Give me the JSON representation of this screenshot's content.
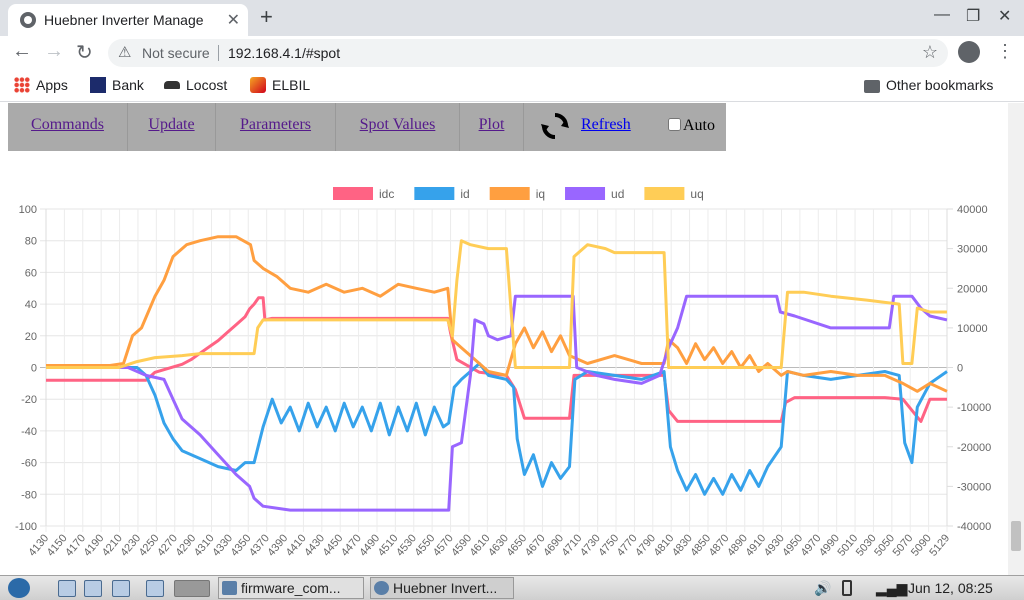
{
  "browser": {
    "tab_title": "Huebner Inverter Manage",
    "url_warning": "Not secure",
    "url": "192.168.4.1/#spot",
    "bookmarks": [
      "Apps",
      "Bank",
      "Locost",
      "ELBIL"
    ],
    "other_bookmarks": "Other bookmarks"
  },
  "menu": {
    "items": [
      "Commands",
      "Update",
      "Parameters",
      "Spot Values",
      "Plot"
    ],
    "refresh_label": "Refresh",
    "auto_label": "Auto"
  },
  "chart_data": {
    "type": "line",
    "title": "",
    "legend_position": "top",
    "grid": true,
    "x": {
      "tick_labels": [
        4130,
        4150,
        4170,
        4190,
        4210,
        4230,
        4250,
        4270,
        4290,
        4310,
        4330,
        4350,
        4370,
        4390,
        4410,
        4430,
        4450,
        4470,
        4490,
        4510,
        4530,
        4550,
        4570,
        4590,
        4610,
        4630,
        4650,
        4670,
        4690,
        4710,
        4730,
        4750,
        4770,
        4790,
        4810,
        4830,
        4850,
        4870,
        4890,
        4910,
        4930,
        4950,
        4970,
        4990,
        5010,
        5030,
        5050,
        5070,
        5090,
        5129
      ],
      "range": [
        4129,
        5129
      ]
    },
    "y_left": {
      "range": [
        -100,
        100
      ],
      "ticks": [
        100,
        80,
        60,
        40,
        20,
        0,
        -20,
        -40,
        -60,
        -80,
        -100
      ]
    },
    "y_right": {
      "range": [
        -40000,
        40000
      ],
      "ticks": [
        40000,
        30000,
        20000,
        10000,
        0,
        -10000,
        -20000,
        -30000,
        -40000
      ]
    },
    "series": [
      {
        "name": "idc",
        "color": "#ff6384",
        "axis": "left",
        "points": [
          [
            4129,
            -8
          ],
          [
            4240,
            -8
          ],
          [
            4250,
            -3
          ],
          [
            4280,
            2
          ],
          [
            4290,
            5
          ],
          [
            4300,
            9
          ],
          [
            4310,
            13
          ],
          [
            4320,
            17
          ],
          [
            4330,
            22
          ],
          [
            4340,
            27
          ],
          [
            4350,
            32
          ],
          [
            4355,
            37
          ],
          [
            4360,
            40
          ],
          [
            4365,
            44
          ],
          [
            4370,
            44
          ],
          [
            4372,
            30
          ],
          [
            4380,
            31
          ],
          [
            4440,
            31
          ],
          [
            4500,
            31
          ],
          [
            4575,
            31
          ],
          [
            4578,
            22
          ],
          [
            4585,
            5
          ],
          [
            4610,
            -3
          ],
          [
            4640,
            -5
          ],
          [
            4650,
            -14
          ],
          [
            4660,
            -32
          ],
          [
            4710,
            -32
          ],
          [
            4715,
            -5
          ],
          [
            4730,
            -5
          ],
          [
            4815,
            -5
          ],
          [
            4820,
            -27
          ],
          [
            4830,
            -34
          ],
          [
            4870,
            -34
          ],
          [
            4930,
            -34
          ],
          [
            4945,
            -34
          ],
          [
            4950,
            -22
          ],
          [
            4960,
            -19
          ],
          [
            4990,
            -19
          ],
          [
            5060,
            -19
          ],
          [
            5080,
            -20
          ],
          [
            5090,
            -27
          ],
          [
            5100,
            -34
          ],
          [
            5110,
            -20
          ],
          [
            5129,
            -20
          ]
        ]
      },
      {
        "name": "id",
        "color": "#36a2eb",
        "axis": "right",
        "points": [
          [
            4129,
            0
          ],
          [
            4230,
            0
          ],
          [
            4240,
            -2000
          ],
          [
            4250,
            -7000
          ],
          [
            4260,
            -14000
          ],
          [
            4270,
            -18000
          ],
          [
            4280,
            -21000
          ],
          [
            4300,
            -23000
          ],
          [
            4320,
            -25000
          ],
          [
            4340,
            -26000
          ],
          [
            4350,
            -24000
          ],
          [
            4360,
            -24000
          ],
          [
            4370,
            -15000
          ],
          [
            4380,
            -8000
          ],
          [
            4390,
            -14000
          ],
          [
            4400,
            -10000
          ],
          [
            4410,
            -16000
          ],
          [
            4420,
            -9000
          ],
          [
            4430,
            -15000
          ],
          [
            4440,
            -10000
          ],
          [
            4450,
            -16000
          ],
          [
            4460,
            -9000
          ],
          [
            4470,
            -15000
          ],
          [
            4480,
            -10000
          ],
          [
            4490,
            -16000
          ],
          [
            4500,
            -9000
          ],
          [
            4510,
            -17000
          ],
          [
            4520,
            -10000
          ],
          [
            4530,
            -16000
          ],
          [
            4540,
            -9000
          ],
          [
            4550,
            -17000
          ],
          [
            4560,
            -10000
          ],
          [
            4570,
            -15000
          ],
          [
            4576,
            -14000
          ],
          [
            4582,
            -5000
          ],
          [
            4590,
            -3000
          ],
          [
            4600,
            -1000
          ],
          [
            4610,
            1000
          ],
          [
            4620,
            -2000
          ],
          [
            4640,
            -3000
          ],
          [
            4648,
            -5000
          ],
          [
            4652,
            -18000
          ],
          [
            4660,
            -27000
          ],
          [
            4670,
            -22000
          ],
          [
            4680,
            -30000
          ],
          [
            4690,
            -24000
          ],
          [
            4700,
            -28000
          ],
          [
            4710,
            -25000
          ],
          [
            4716,
            -3000
          ],
          [
            4730,
            -1000
          ],
          [
            4760,
            -2000
          ],
          [
            4790,
            -3000
          ],
          [
            4815,
            -1000
          ],
          [
            4822,
            -20000
          ],
          [
            4830,
            -26000
          ],
          [
            4840,
            -31000
          ],
          [
            4850,
            -27000
          ],
          [
            4860,
            -32000
          ],
          [
            4870,
            -28000
          ],
          [
            4880,
            -32000
          ],
          [
            4890,
            -27000
          ],
          [
            4900,
            -31000
          ],
          [
            4910,
            -26000
          ],
          [
            4920,
            -30000
          ],
          [
            4930,
            -25000
          ],
          [
            4945,
            -20000
          ],
          [
            4952,
            -1000
          ],
          [
            4970,
            -2000
          ],
          [
            5000,
            -3000
          ],
          [
            5030,
            -2000
          ],
          [
            5060,
            -1000
          ],
          [
            5076,
            -2000
          ],
          [
            5082,
            -19000
          ],
          [
            5090,
            -24000
          ],
          [
            5096,
            -10000
          ],
          [
            5110,
            -4000
          ],
          [
            5129,
            -1000
          ]
        ]
      },
      {
        "name": "iq",
        "color": "#ff9f40",
        "axis": "right",
        "points": [
          [
            4129,
            500
          ],
          [
            4200,
            500
          ],
          [
            4215,
            1000
          ],
          [
            4225,
            8000
          ],
          [
            4235,
            10000
          ],
          [
            4250,
            18000
          ],
          [
            4260,
            22000
          ],
          [
            4270,
            28000
          ],
          [
            4285,
            31000
          ],
          [
            4300,
            32000
          ],
          [
            4320,
            33000
          ],
          [
            4340,
            33000
          ],
          [
            4356,
            31000
          ],
          [
            4360,
            27000
          ],
          [
            4370,
            25000
          ],
          [
            4385,
            23000
          ],
          [
            4400,
            20000
          ],
          [
            4420,
            19000
          ],
          [
            4440,
            21000
          ],
          [
            4460,
            19000
          ],
          [
            4480,
            20000
          ],
          [
            4500,
            18000
          ],
          [
            4520,
            21000
          ],
          [
            4540,
            20000
          ],
          [
            4560,
            19000
          ],
          [
            4575,
            20000
          ],
          [
            4580,
            7000
          ],
          [
            4590,
            5000
          ],
          [
            4600,
            3000
          ],
          [
            4620,
            -1000
          ],
          [
            4640,
            -2000
          ],
          [
            4650,
            6000
          ],
          [
            4660,
            10000
          ],
          [
            4670,
            5000
          ],
          [
            4680,
            9000
          ],
          [
            4690,
            4000
          ],
          [
            4700,
            8000
          ],
          [
            4710,
            3000
          ],
          [
            4730,
            1000
          ],
          [
            4760,
            3000
          ],
          [
            4790,
            1000
          ],
          [
            4815,
            1000
          ],
          [
            4820,
            7000
          ],
          [
            4830,
            5000
          ],
          [
            4840,
            1000
          ],
          [
            4850,
            6000
          ],
          [
            4860,
            2000
          ],
          [
            4870,
            5000
          ],
          [
            4880,
            1000
          ],
          [
            4890,
            4000
          ],
          [
            4900,
            0
          ],
          [
            4910,
            3000
          ],
          [
            4920,
            -1000
          ],
          [
            4930,
            1000
          ],
          [
            4945,
            -2000
          ],
          [
            4952,
            -1000
          ],
          [
            4970,
            -2000
          ],
          [
            5000,
            -1000
          ],
          [
            5030,
            -2000
          ],
          [
            5060,
            -2000
          ],
          [
            5080,
            -4000
          ],
          [
            5096,
            -6000
          ],
          [
            5110,
            -4000
          ],
          [
            5129,
            -6000
          ]
        ]
      },
      {
        "name": "ud",
        "color": "#9966ff",
        "axis": "right",
        "points": [
          [
            4129,
            0
          ],
          [
            4220,
            0
          ],
          [
            4240,
            -2000
          ],
          [
            4260,
            -3000
          ],
          [
            4270,
            -8000
          ],
          [
            4280,
            -13000
          ],
          [
            4300,
            -17000
          ],
          [
            4320,
            -22000
          ],
          [
            4340,
            -27000
          ],
          [
            4355,
            -30000
          ],
          [
            4360,
            -33000
          ],
          [
            4370,
            -35000
          ],
          [
            4400,
            -36000
          ],
          [
            4440,
            -36000
          ],
          [
            4500,
            -36000
          ],
          [
            4560,
            -36000
          ],
          [
            4576,
            -36000
          ],
          [
            4580,
            -20000
          ],
          [
            4590,
            -19000
          ],
          [
            4600,
            -2000
          ],
          [
            4605,
            12000
          ],
          [
            4615,
            11000
          ],
          [
            4620,
            8000
          ],
          [
            4630,
            7000
          ],
          [
            4645,
            8000
          ],
          [
            4650,
            18000
          ],
          [
            4680,
            18000
          ],
          [
            4700,
            18000
          ],
          [
            4714,
            18000
          ],
          [
            4718,
            0
          ],
          [
            4740,
            -2000
          ],
          [
            4760,
            -3000
          ],
          [
            4790,
            -4000
          ],
          [
            4810,
            -2000
          ],
          [
            4820,
            5000
          ],
          [
            4830,
            10000
          ],
          [
            4840,
            18000
          ],
          [
            4880,
            18000
          ],
          [
            4940,
            18000
          ],
          [
            4944,
            14000
          ],
          [
            4960,
            13000
          ],
          [
            5000,
            10000
          ],
          [
            5040,
            10000
          ],
          [
            5065,
            10000
          ],
          [
            5070,
            18000
          ],
          [
            5090,
            18000
          ],
          [
            5100,
            15000
          ],
          [
            5110,
            13000
          ],
          [
            5129,
            12000
          ]
        ]
      },
      {
        "name": "uq",
        "color": "#ffcd56",
        "axis": "right",
        "points": [
          [
            4129,
            0
          ],
          [
            4210,
            0
          ],
          [
            4230,
            1500
          ],
          [
            4250,
            2500
          ],
          [
            4280,
            3000
          ],
          [
            4300,
            3500
          ],
          [
            4330,
            3500
          ],
          [
            4350,
            3500
          ],
          [
            4360,
            3500
          ],
          [
            4364,
            10000
          ],
          [
            4370,
            12000
          ],
          [
            4440,
            12000
          ],
          [
            4500,
            12000
          ],
          [
            4575,
            12000
          ],
          [
            4580,
            8000
          ],
          [
            4585,
            22000
          ],
          [
            4590,
            32000
          ],
          [
            4600,
            31000
          ],
          [
            4620,
            30000
          ],
          [
            4640,
            30000
          ],
          [
            4650,
            0
          ],
          [
            4670,
            0
          ],
          [
            4700,
            0
          ],
          [
            4710,
            0
          ],
          [
            4715,
            28000
          ],
          [
            4730,
            31000
          ],
          [
            4750,
            30000
          ],
          [
            4760,
            29000
          ],
          [
            4790,
            29000
          ],
          [
            4815,
            29000
          ],
          [
            4820,
            0
          ],
          [
            4830,
            0
          ],
          [
            4900,
            0
          ],
          [
            4945,
            0
          ],
          [
            4952,
            19000
          ],
          [
            4970,
            19000
          ],
          [
            5000,
            18000
          ],
          [
            5040,
            17000
          ],
          [
            5076,
            16000
          ],
          [
            5080,
            1000
          ],
          [
            5090,
            1000
          ],
          [
            5096,
            15000
          ],
          [
            5110,
            14000
          ],
          [
            5129,
            14000
          ]
        ]
      }
    ]
  },
  "taskbar": {
    "tasks": [
      "firmware_com...",
      "Huebner Invert..."
    ],
    "clock": "Jun 12, 08:25"
  }
}
